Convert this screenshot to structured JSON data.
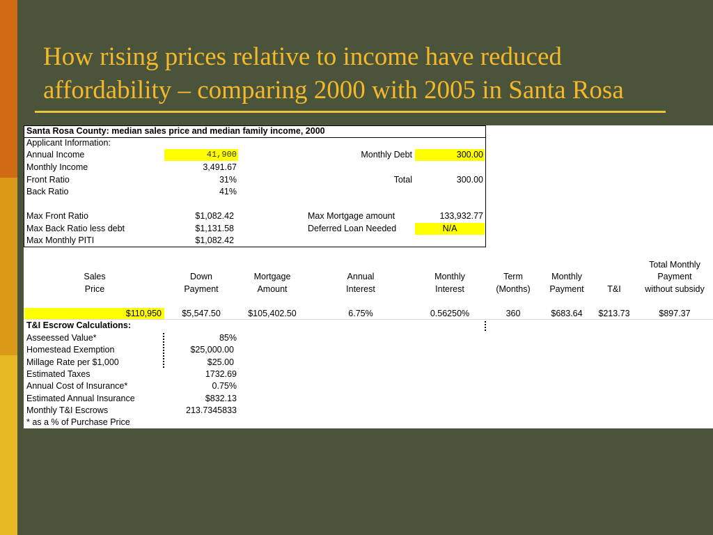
{
  "slide": {
    "title_line1": "How rising prices relative to income have reduced",
    "title_line2": "affordability – comparing 2000 with 2005 in Santa Rosa"
  },
  "sheet": {
    "heading": "Santa Rosa County: median sales price and median family income, 2000",
    "applicant_info": "Applicant Information:",
    "left_rows": [
      {
        "label": "Annual Income",
        "value": "41,900"
      },
      {
        "label": "Monthly Income",
        "value": "3,491.67"
      },
      {
        "label": "Front Ratio",
        "value": "31%"
      },
      {
        "label": "Back Ratio",
        "value": "41%"
      },
      {
        "label": "Max Front Ratio",
        "value": "$1,082.42"
      },
      {
        "label": "Max Back Ratio less debt",
        "value": "$1,131.58"
      },
      {
        "label": "Max Monthly PITI",
        "value": "$1,082.42"
      }
    ],
    "right_rows": [
      {
        "label": "Monthly Debt",
        "value": "300.00"
      },
      {
        "label": "Total",
        "value": "300.00"
      },
      {
        "label": "Max Mortgage amount",
        "value": "133,932.77"
      },
      {
        "label": "Deferred Loan Needed",
        "value": "N/A"
      }
    ],
    "columns": [
      {
        "lines": [
          "Sales",
          "Price"
        ]
      },
      {
        "lines": [
          "Down",
          "Payment"
        ]
      },
      {
        "lines": [
          "Mortgage",
          "Amount"
        ]
      },
      {
        "lines": [
          "Annual",
          "Interest"
        ]
      },
      {
        "lines": [
          "Monthly",
          "Interest"
        ]
      },
      {
        "lines": [
          "Term",
          "(Months)"
        ]
      },
      {
        "lines": [
          "Monthly",
          "Payment"
        ]
      },
      {
        "lines": [
          "T&I"
        ]
      },
      {
        "lines": [
          "Total Monthly",
          "Payment",
          "without subsidy"
        ]
      }
    ],
    "data_row": [
      "$110,950",
      "$5,547.50",
      "$105,402.50",
      "6.75%",
      "0.56250%",
      "360",
      "$683.64",
      "$213.73",
      "$897.37"
    ],
    "escrow": {
      "heading": "T&I Escrow Calculations:",
      "rows": [
        {
          "label": "Asseessed Value*",
          "value": "85%"
        },
        {
          "label": "Homestead Exemption",
          "value": "$25,000.00"
        },
        {
          "label": "Millage Rate per $1,000",
          "value": "$25.00"
        },
        {
          "label": "Estimated Taxes",
          "value": "1732.69"
        },
        {
          "label": "Annual Cost of Insurance*",
          "value": "0.75%"
        },
        {
          "label": "Estimated Annual Insurance",
          "value": "$832.13"
        },
        {
          "label": "Monthly T&I Escrows",
          "value": "213.7345833"
        }
      ],
      "footnote": "* as a % of Purchase Price"
    }
  },
  "colors": {
    "background": "#4a543a",
    "title": "#f5b82a",
    "highlight": "#ffff00"
  }
}
